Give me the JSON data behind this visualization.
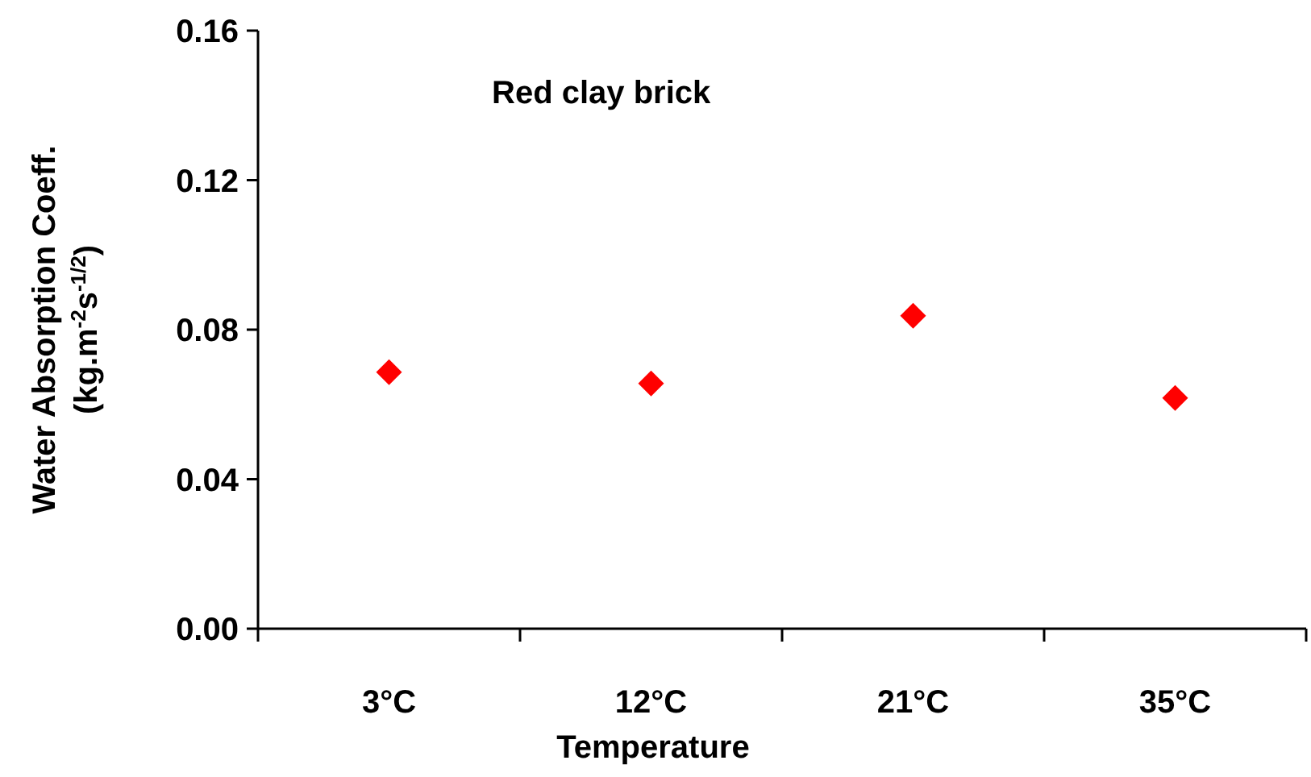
{
  "chart_data": {
    "type": "scatter",
    "title": "Red clay brick",
    "xlabel": "Temperature",
    "ylabel": "Water Absorption Coeff.\n(kg.m$^{-2}$s$^{-1/2}$)",
    "categories": [
      "3°C",
      "12°C",
      "21°C",
      "35°C"
    ],
    "series": [
      {
        "color": "#ff0000",
        "values": [
          0.0686,
          0.0656,
          0.0837,
          0.0617
        ]
      }
    ],
    "ylim": [
      0,
      0.16
    ],
    "yticks": [
      {
        "value": 0,
        "label": "0.00"
      },
      {
        "value": 0.04,
        "label": "0.04"
      },
      {
        "value": 0.08,
        "label": "0.08"
      },
      {
        "value": 0.12,
        "label": "0.12"
      },
      {
        "value": 0.16,
        "label": "0.16"
      }
    ],
    "marker": "diamond",
    "grid": false
  }
}
